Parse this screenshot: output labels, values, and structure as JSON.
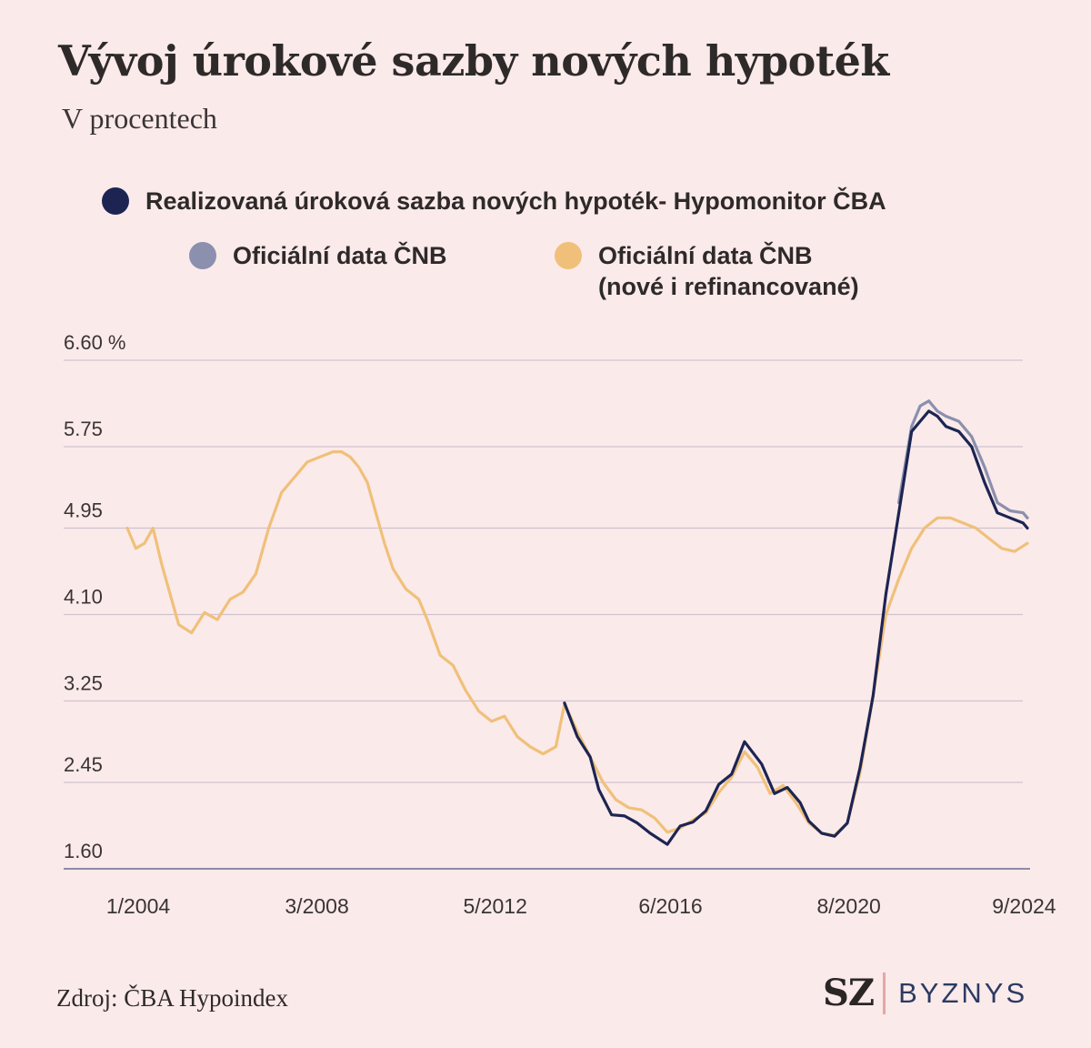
{
  "chart_data": {
    "type": "line",
    "title": "Vývoj úrokové sazby nových hypoték",
    "subtitle": "V procentech",
    "y_ticks": [
      "6.60 %",
      "5.75",
      "4.95",
      "4.10",
      "3.25",
      "2.45",
      "1.60"
    ],
    "y_tick_values": [
      6.6,
      5.75,
      4.95,
      4.1,
      3.25,
      2.45,
      1.6
    ],
    "ylim": [
      1.6,
      6.6
    ],
    "x_ticks": [
      "1/2004",
      "3/2008",
      "5/2012",
      "6/2016",
      "8/2020",
      "9/2024"
    ],
    "x_tick_values": [
      2004.0,
      2008.17,
      2012.33,
      2016.42,
      2020.58,
      2024.67
    ],
    "xlim": [
      2004.0,
      2025.0
    ],
    "grid": true,
    "legend_position": "top",
    "series": [
      {
        "name": "Realizovaná úroková sazba nových hypoték- Hypomonitor ČBA",
        "color": "#1c2552",
        "x": [
          2014.2,
          2014.5,
          2014.8,
          2015.0,
          2015.3,
          2015.6,
          2015.9,
          2016.2,
          2016.6,
          2016.9,
          2017.2,
          2017.5,
          2017.8,
          2018.1,
          2018.4,
          2018.8,
          2019.1,
          2019.4,
          2019.7,
          2019.9,
          2020.2,
          2020.5,
          2020.8,
          2021.1,
          2021.4,
          2021.7,
          2022.0,
          2022.3,
          2022.5,
          2022.7,
          2022.9,
          2023.1,
          2023.4,
          2023.7,
          2024.0,
          2024.3,
          2024.6,
          2024.9,
          2025.0
        ],
        "values": [
          3.23,
          2.9,
          2.7,
          2.38,
          2.13,
          2.12,
          2.05,
          1.95,
          1.84,
          2.02,
          2.06,
          2.17,
          2.43,
          2.53,
          2.85,
          2.63,
          2.34,
          2.4,
          2.25,
          2.07,
          1.95,
          1.92,
          2.05,
          2.6,
          3.3,
          4.3,
          5.1,
          5.9,
          6.0,
          6.1,
          6.05,
          5.95,
          5.9,
          5.75,
          5.4,
          5.1,
          5.05,
          5.0,
          4.95
        ]
      },
      {
        "name": "Oficiální data ČNB",
        "color": "#8a90ad",
        "x": [
          2022.0,
          2022.3,
          2022.5,
          2022.7,
          2022.9,
          2023.1,
          2023.4,
          2023.7,
          2024.0,
          2024.3,
          2024.6,
          2024.9,
          2025.0
        ],
        "values": [
          5.2,
          5.95,
          6.15,
          6.2,
          6.1,
          6.05,
          6.0,
          5.85,
          5.55,
          5.2,
          5.12,
          5.1,
          5.05
        ]
      },
      {
        "name": "Oficiální data ČNB",
        "name_line2": "(nové i refinancované)",
        "color": "#f0c07a",
        "x": [
          2004.0,
          2004.2,
          2004.4,
          2004.6,
          2004.8,
          2005.0,
          2005.2,
          2005.5,
          2005.8,
          2006.1,
          2006.4,
          2006.7,
          2007.0,
          2007.3,
          2007.6,
          2007.9,
          2008.2,
          2008.5,
          2008.8,
          2009.0,
          2009.2,
          2009.4,
          2009.6,
          2009.8,
          2010.0,
          2010.2,
          2010.5,
          2010.8,
          2011.0,
          2011.3,
          2011.6,
          2011.9,
          2012.2,
          2012.5,
          2012.8,
          2013.1,
          2013.4,
          2013.7,
          2014.0,
          2014.2,
          2014.5,
          2014.8,
          2015.1,
          2015.4,
          2015.7,
          2016.0,
          2016.3,
          2016.6,
          2016.9,
          2017.2,
          2017.5,
          2017.8,
          2018.1,
          2018.4,
          2018.7,
          2019.0,
          2019.3,
          2019.6,
          2019.9,
          2020.2,
          2020.5,
          2020.8,
          2021.1,
          2021.4,
          2021.7,
          2022.0,
          2022.3,
          2022.6,
          2022.9,
          2023.2,
          2023.5,
          2023.8,
          2024.1,
          2024.4,
          2024.7,
          2025.0
        ],
        "values": [
          4.95,
          4.75,
          4.8,
          4.95,
          4.6,
          4.3,
          4.0,
          3.92,
          4.12,
          4.05,
          4.25,
          4.32,
          4.5,
          4.95,
          5.3,
          5.45,
          5.6,
          5.65,
          5.7,
          5.7,
          5.65,
          5.55,
          5.4,
          5.1,
          4.8,
          4.55,
          4.35,
          4.25,
          4.05,
          3.7,
          3.6,
          3.35,
          3.15,
          3.05,
          3.1,
          2.9,
          2.8,
          2.73,
          2.8,
          3.22,
          2.95,
          2.7,
          2.45,
          2.28,
          2.2,
          2.18,
          2.1,
          1.96,
          2.0,
          2.08,
          2.15,
          2.35,
          2.5,
          2.75,
          2.6,
          2.34,
          2.42,
          2.25,
          2.05,
          1.95,
          1.93,
          2.05,
          2.55,
          3.3,
          4.1,
          4.45,
          4.75,
          4.95,
          5.05,
          5.05,
          5.0,
          4.95,
          4.85,
          4.75,
          4.72,
          4.8
        ]
      }
    ]
  },
  "source": "Zdroj: ČBA Hypoindex",
  "logo": {
    "sz": "SZ",
    "byznys": "BYZNYS"
  }
}
